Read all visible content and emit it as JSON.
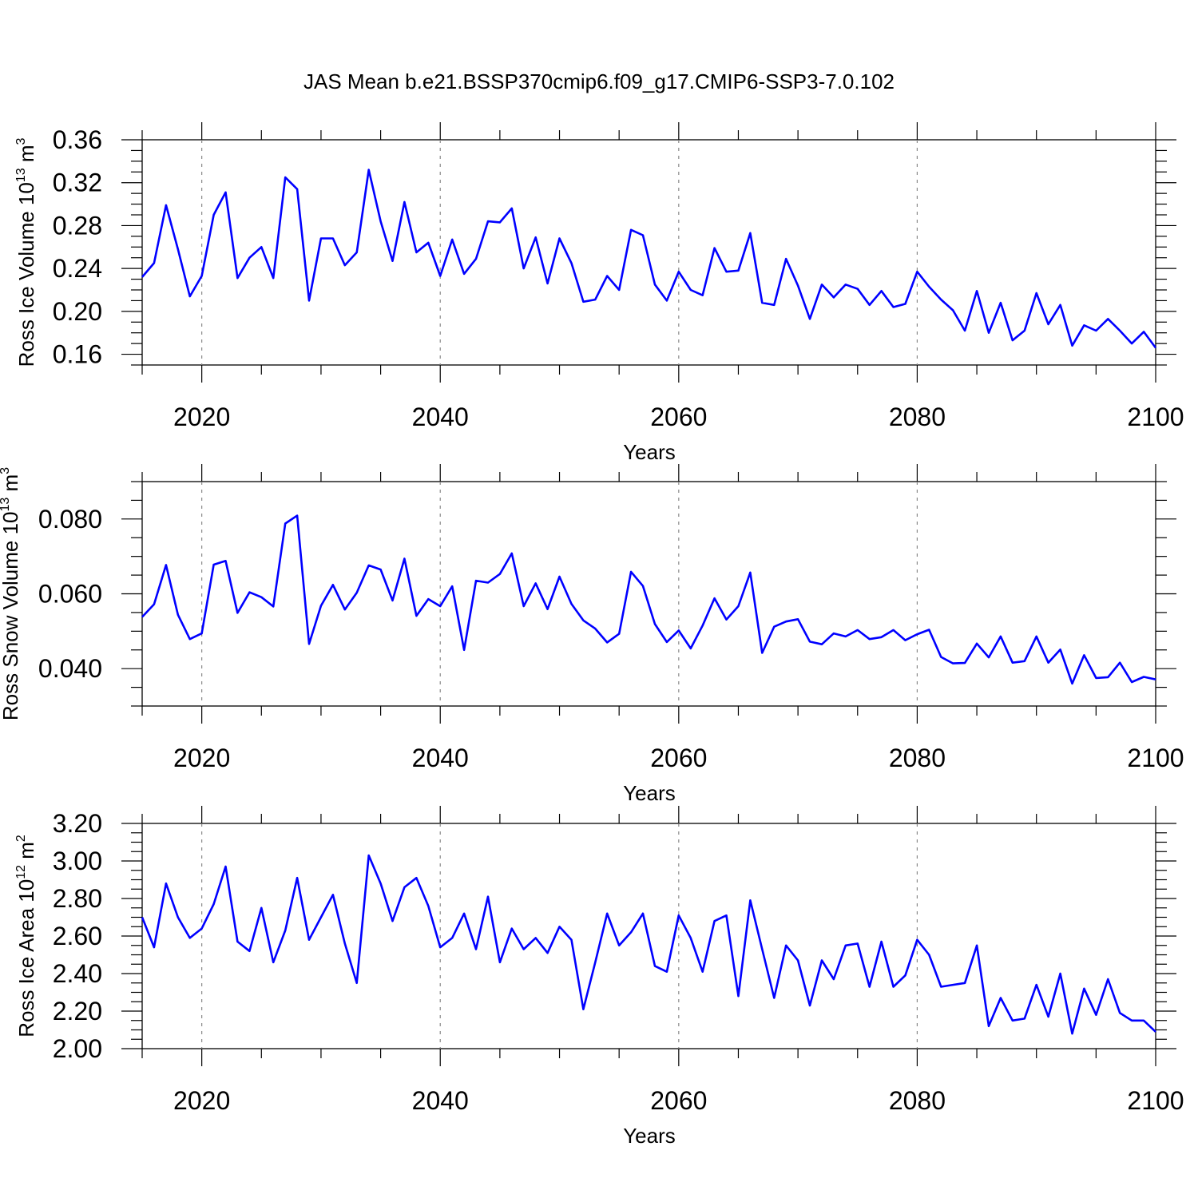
{
  "title": "JAS Mean b.e21.BSSP370cmip6.f09_g17.CMIP6-SSP3-7.0.102",
  "colors": {
    "line": "#0000ff",
    "axis": "#000000",
    "grid": "#888888"
  },
  "chart_data": [
    {
      "type": "line",
      "title": "",
      "ylabel_main": "Ross Ice Volume 10",
      "ylabel_exp": "13",
      "ylabel_unit": " m",
      "ylabel_unit_exp": "3",
      "xlabel": "Years",
      "xlim": [
        2015,
        2100
      ],
      "ylim": [
        0.15,
        0.36
      ],
      "xticks": [
        "2020",
        "2040",
        "2060",
        "2080",
        "2100"
      ],
      "yticks": [
        "0.16",
        "0.20",
        "0.24",
        "0.28",
        "0.32",
        "0.36"
      ],
      "grid": "vertical dashed at major x ticks",
      "x": [
        2015,
        2016,
        2017,
        2018,
        2019,
        2020,
        2021,
        2022,
        2023,
        2024,
        2025,
        2026,
        2027,
        2028,
        2029,
        2030,
        2031,
        2032,
        2033,
        2034,
        2035,
        2036,
        2037,
        2038,
        2039,
        2040,
        2041,
        2042,
        2043,
        2044,
        2045,
        2046,
        2047,
        2048,
        2049,
        2050,
        2051,
        2052,
        2053,
        2054,
        2055,
        2056,
        2057,
        2058,
        2059,
        2060,
        2061,
        2062,
        2063,
        2064,
        2065,
        2066,
        2067,
        2068,
        2069,
        2070,
        2071,
        2072,
        2073,
        2074,
        2075,
        2076,
        2077,
        2078,
        2079,
        2080,
        2081,
        2082,
        2083,
        2084,
        2085,
        2086,
        2087,
        2088,
        2089,
        2090,
        2091,
        2092,
        2093,
        2094,
        2095,
        2096,
        2097,
        2098,
        2099,
        2100
      ],
      "series": [
        {
          "values": [
            0.232,
            0.245,
            0.299,
            0.258,
            0.214,
            0.233,
            0.29,
            0.311,
            0.231,
            0.25,
            0.26,
            0.231,
            0.325,
            0.314,
            0.21,
            0.268,
            0.268,
            0.243,
            0.255,
            0.332,
            0.284,
            0.247,
            0.302,
            0.255,
            0.264,
            0.233,
            0.267,
            0.235,
            0.249,
            0.284,
            0.283,
            0.296,
            0.24,
            0.269,
            0.226,
            0.268,
            0.245,
            0.209,
            0.211,
            0.233,
            0.22,
            0.276,
            0.271,
            0.225,
            0.21,
            0.237,
            0.22,
            0.215,
            0.259,
            0.237,
            0.238,
            0.273,
            0.208,
            0.206,
            0.249,
            0.224,
            0.193,
            0.225,
            0.213,
            0.225,
            0.221,
            0.206,
            0.219,
            0.204,
            0.207,
            0.237,
            0.223,
            0.211,
            0.201,
            0.182,
            0.219,
            0.18,
            0.208,
            0.173,
            0.182,
            0.217,
            0.188,
            0.206,
            0.168,
            0.187,
            0.182,
            0.193,
            0.182,
            0.17,
            0.181,
            0.166
          ]
        }
      ]
    },
    {
      "type": "line",
      "title": "",
      "ylabel_main": "Ross Snow Volume 10",
      "ylabel_exp": "13",
      "ylabel_unit": " m",
      "ylabel_unit_exp": "3",
      "xlabel": "Years",
      "xlim": [
        2015,
        2100
      ],
      "ylim": [
        0.03,
        0.09
      ],
      "xticks": [
        "2020",
        "2040",
        "2060",
        "2080",
        "2100"
      ],
      "yticks": [
        "0.040",
        "0.060",
        "0.080"
      ],
      "grid": "vertical dashed at major x ticks",
      "x": [
        2015,
        2016,
        2017,
        2018,
        2019,
        2020,
        2021,
        2022,
        2023,
        2024,
        2025,
        2026,
        2027,
        2028,
        2029,
        2030,
        2031,
        2032,
        2033,
        2034,
        2035,
        2036,
        2037,
        2038,
        2039,
        2040,
        2041,
        2042,
        2043,
        2044,
        2045,
        2046,
        2047,
        2048,
        2049,
        2050,
        2051,
        2052,
        2053,
        2054,
        2055,
        2056,
        2057,
        2058,
        2059,
        2060,
        2061,
        2062,
        2063,
        2064,
        2065,
        2066,
        2067,
        2068,
        2069,
        2070,
        2071,
        2072,
        2073,
        2074,
        2075,
        2076,
        2077,
        2078,
        2079,
        2080,
        2081,
        2082,
        2083,
        2084,
        2085,
        2086,
        2087,
        2088,
        2089,
        2090,
        2091,
        2092,
        2093,
        2094,
        2095,
        2096,
        2097,
        2098,
        2099,
        2100
      ],
      "series": [
        {
          "values": [
            0.0538,
            0.0572,
            0.0677,
            0.0544,
            0.0479,
            0.0494,
            0.0678,
            0.0688,
            0.0549,
            0.0604,
            0.0591,
            0.0566,
            0.0788,
            0.0809,
            0.0466,
            0.0568,
            0.0624,
            0.0558,
            0.0603,
            0.0676,
            0.0665,
            0.0582,
            0.0694,
            0.0541,
            0.0586,
            0.0567,
            0.062,
            0.045,
            0.0635,
            0.063,
            0.0653,
            0.0708,
            0.0567,
            0.0628,
            0.0559,
            0.0646,
            0.0573,
            0.0529,
            0.0507,
            0.047,
            0.0493,
            0.0659,
            0.0621,
            0.0519,
            0.0471,
            0.0502,
            0.0454,
            0.0515,
            0.0588,
            0.0531,
            0.0567,
            0.0657,
            0.0442,
            0.0512,
            0.0526,
            0.0532,
            0.0472,
            0.0465,
            0.0494,
            0.0486,
            0.0503,
            0.0479,
            0.0484,
            0.0503,
            0.0476,
            0.0492,
            0.0504,
            0.0431,
            0.0414,
            0.0415,
            0.0467,
            0.043,
            0.0486,
            0.0416,
            0.042,
            0.0486,
            0.0416,
            0.0451,
            0.036,
            0.0436,
            0.0375,
            0.0377,
            0.0416,
            0.0364,
            0.0378,
            0.0371
          ]
        }
      ]
    },
    {
      "type": "line",
      "title": "",
      "ylabel_main": "Ross Ice Area 10",
      "ylabel_exp": "12",
      "ylabel_unit": " m",
      "ylabel_unit_exp": "2",
      "xlabel": "Years",
      "xlim": [
        2015,
        2100
      ],
      "ylim": [
        2.0,
        3.2
      ],
      "xticks": [
        "2020",
        "2040",
        "2060",
        "2080",
        "2100"
      ],
      "yticks": [
        "2.00",
        "2.20",
        "2.40",
        "2.60",
        "2.80",
        "3.00",
        "3.20"
      ],
      "grid": "vertical dashed at major x ticks",
      "x": [
        2015,
        2016,
        2017,
        2018,
        2019,
        2020,
        2021,
        2022,
        2023,
        2024,
        2025,
        2026,
        2027,
        2028,
        2029,
        2030,
        2031,
        2032,
        2033,
        2034,
        2035,
        2036,
        2037,
        2038,
        2039,
        2040,
        2041,
        2042,
        2043,
        2044,
        2045,
        2046,
        2047,
        2048,
        2049,
        2050,
        2051,
        2052,
        2053,
        2054,
        2055,
        2056,
        2057,
        2058,
        2059,
        2060,
        2061,
        2062,
        2063,
        2064,
        2065,
        2066,
        2067,
        2068,
        2069,
        2070,
        2071,
        2072,
        2073,
        2074,
        2075,
        2076,
        2077,
        2078,
        2079,
        2080,
        2081,
        2082,
        2083,
        2084,
        2085,
        2086,
        2087,
        2088,
        2089,
        2090,
        2091,
        2092,
        2093,
        2094,
        2095,
        2096,
        2097,
        2098,
        2099,
        2100
      ],
      "series": [
        {
          "values": [
            2.7,
            2.54,
            2.88,
            2.7,
            2.59,
            2.64,
            2.77,
            2.97,
            2.57,
            2.52,
            2.75,
            2.46,
            2.63,
            2.91,
            2.58,
            2.7,
            2.82,
            2.56,
            2.35,
            3.03,
            2.88,
            2.68,
            2.86,
            2.91,
            2.76,
            2.54,
            2.59,
            2.72,
            2.53,
            2.81,
            2.46,
            2.64,
            2.53,
            2.59,
            2.51,
            2.65,
            2.58,
            2.21,
            2.46,
            2.72,
            2.55,
            2.62,
            2.72,
            2.44,
            2.41,
            2.71,
            2.59,
            2.41,
            2.68,
            2.71,
            2.28,
            2.79,
            2.53,
            2.27,
            2.55,
            2.47,
            2.23,
            2.47,
            2.37,
            2.55,
            2.56,
            2.33,
            2.57,
            2.33,
            2.39,
            2.58,
            2.5,
            2.33,
            2.34,
            2.35,
            2.55,
            2.12,
            2.27,
            2.15,
            2.16,
            2.34,
            2.17,
            2.4,
            2.08,
            2.32,
            2.18,
            2.37,
            2.19,
            2.15,
            2.15,
            2.09
          ]
        }
      ]
    }
  ]
}
